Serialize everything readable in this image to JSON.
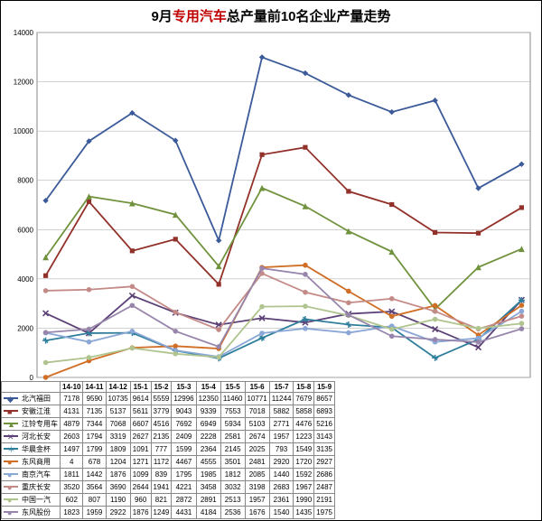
{
  "title_prefix": "9月",
  "title_red": "专用汽车",
  "title_suffix": "总产量前10名企业产量走势",
  "chart": {
    "type": "line",
    "background_color": "#ffffff",
    "grid_color": "#b7b7b7",
    "axis_label_fontsize": 8,
    "categories": [
      "14-10",
      "14-11",
      "14-12",
      "15-1",
      "15-2",
      "15-3",
      "15-4",
      "15-5",
      "15-6",
      "15-7",
      "15-8",
      "15-9"
    ],
    "ylim": [
      0,
      14000
    ],
    "ytick_step": 2000,
    "yticks": [
      "0",
      "2000",
      "4000",
      "6000",
      "8000",
      "10000",
      "12000",
      "14000"
    ],
    "series": [
      {
        "name": "北汽福田",
        "color": "#3b5a99",
        "marker": "◆",
        "values": [
          7178,
          9590,
          10735,
          9614,
          5559,
          12996,
          12350,
          11460,
          10771,
          11244,
          7679,
          8657
        ]
      },
      {
        "name": "安徽江淮",
        "color": "#92312a",
        "marker": "■",
        "values": [
          4131,
          7135,
          5137,
          5611,
          3779,
          9043,
          9339,
          7553,
          7018,
          5882,
          5858,
          6893
        ]
      },
      {
        "name": "江铃专用车",
        "color": "#70923d",
        "marker": "▲",
        "values": [
          4879,
          7344,
          7068,
          6607,
          4516,
          7692,
          6949,
          5934,
          5103,
          2771,
          4476,
          5216
        ]
      },
      {
        "name": "河北长安",
        "color": "#5c4176",
        "marker": "✕",
        "values": [
          2603,
          1794,
          3319,
          2627,
          2135,
          2409,
          2228,
          2581,
          2674,
          1957,
          1223,
          3143
        ]
      },
      {
        "name": "华晨金杯",
        "color": "#2e7e9c",
        "marker": "＊",
        "values": [
          1497,
          1799,
          1809,
          1091,
          777,
          1599,
          2364,
          2145,
          2025,
          793,
          1549,
          3135
        ]
      },
      {
        "name": "东风商用",
        "color": "#cf6e24",
        "marker": "●",
        "values": [
          4,
          678,
          1204,
          1271,
          1172,
          4467,
          4555,
          3501,
          2481,
          2920,
          1720,
          2927
        ]
      },
      {
        "name": "南京汽车",
        "color": "#8aa7d5",
        "marker": "●",
        "values": [
          1811,
          1442,
          1876,
          1099,
          839,
          1795,
          1985,
          1812,
          2085,
          1440,
          1592,
          2686
        ]
      },
      {
        "name": "重庆长安",
        "color": "#c48a87",
        "marker": "●",
        "values": [
          3520,
          3564,
          3690,
          2644,
          1941,
          4221,
          3458,
          3032,
          3198,
          2683,
          1967,
          2487
        ]
      },
      {
        "name": "中国一汽",
        "color": "#afc48e",
        "marker": "●",
        "values": [
          602,
          807,
          1190,
          960,
          821,
          2872,
          2891,
          2513,
          1957,
          2361,
          1990,
          2191
        ]
      },
      {
        "name": "东风股份",
        "color": "#9785ac",
        "marker": "●",
        "values": [
          1823,
          1959,
          2922,
          1876,
          1249,
          4431,
          4184,
          2536,
          1676,
          1540,
          1435,
          1975
        ]
      }
    ]
  }
}
